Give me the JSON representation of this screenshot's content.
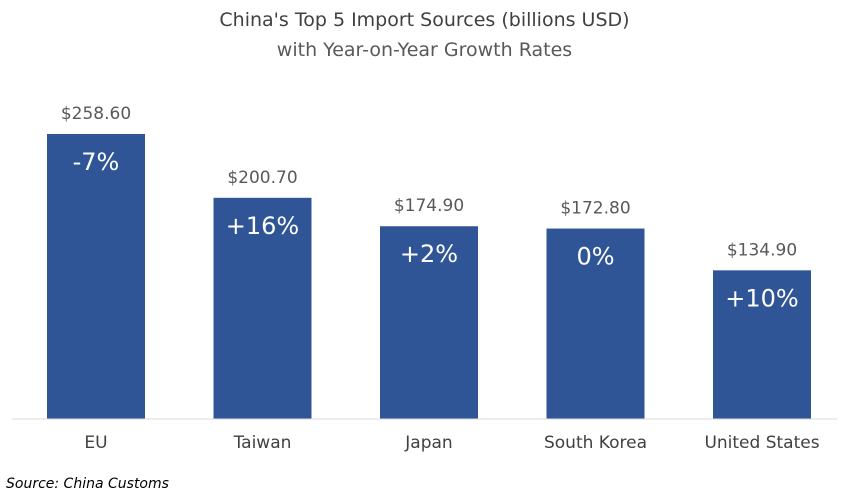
{
  "colors": {
    "bar": "#2f5597",
    "background": "#ffffff"
  },
  "chart_data": {
    "type": "bar",
    "title": "China's Top 5 Import Sources (billions USD)",
    "subtitle": "with Year-on-Year Growth Rates",
    "categories": [
      "EU",
      "Taiwan",
      "Japan",
      "South Korea",
      "United States"
    ],
    "values": [
      258.6,
      200.7,
      174.9,
      172.8,
      134.9
    ],
    "value_labels": [
      "$258.60",
      "$200.70",
      "$174.90",
      "$172.80",
      "$134.90"
    ],
    "growth_labels": [
      "-7%",
      "+16%",
      "+2%",
      "0%",
      "+10%"
    ],
    "ylim": [
      0,
      258.6
    ],
    "grid": false,
    "legend": "none",
    "source": "Source: China Customs"
  }
}
